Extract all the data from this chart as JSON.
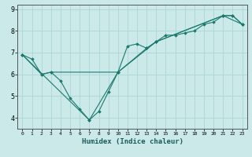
{
  "xlabel": "Humidex (Indice chaleur)",
  "background_color": "#cce9e9",
  "grid_color": "#b0d8d8",
  "line_color": "#1a7a6e",
  "xlim": [
    -0.5,
    23.5
  ],
  "ylim": [
    3.5,
    9.2
  ],
  "xticks": [
    0,
    1,
    2,
    3,
    4,
    5,
    6,
    7,
    8,
    9,
    10,
    11,
    12,
    13,
    14,
    15,
    16,
    17,
    18,
    19,
    20,
    21,
    22,
    23
  ],
  "yticks": [
    4,
    5,
    6,
    7,
    8,
    9
  ],
  "series1_x": [
    0,
    1,
    2,
    3,
    4,
    5,
    6,
    7,
    8,
    9,
    10,
    11,
    12,
    13,
    14,
    15,
    16,
    17,
    18,
    19,
    20,
    21,
    22,
    23
  ],
  "series1_y": [
    6.9,
    6.7,
    6.0,
    6.1,
    5.7,
    4.9,
    4.4,
    3.9,
    4.3,
    5.2,
    6.1,
    7.3,
    7.4,
    7.2,
    7.5,
    7.8,
    7.8,
    7.9,
    8.0,
    8.3,
    8.4,
    8.7,
    8.7,
    8.3
  ],
  "series2_x": [
    0,
    2,
    3,
    10,
    13,
    14,
    21,
    22,
    23
  ],
  "series2_y": [
    6.9,
    6.0,
    6.1,
    6.1,
    7.2,
    7.5,
    8.7,
    8.7,
    8.3
  ],
  "series3_x": [
    0,
    7,
    10,
    14,
    21,
    23
  ],
  "series3_y": [
    6.9,
    3.9,
    6.1,
    7.5,
    8.7,
    8.3
  ]
}
